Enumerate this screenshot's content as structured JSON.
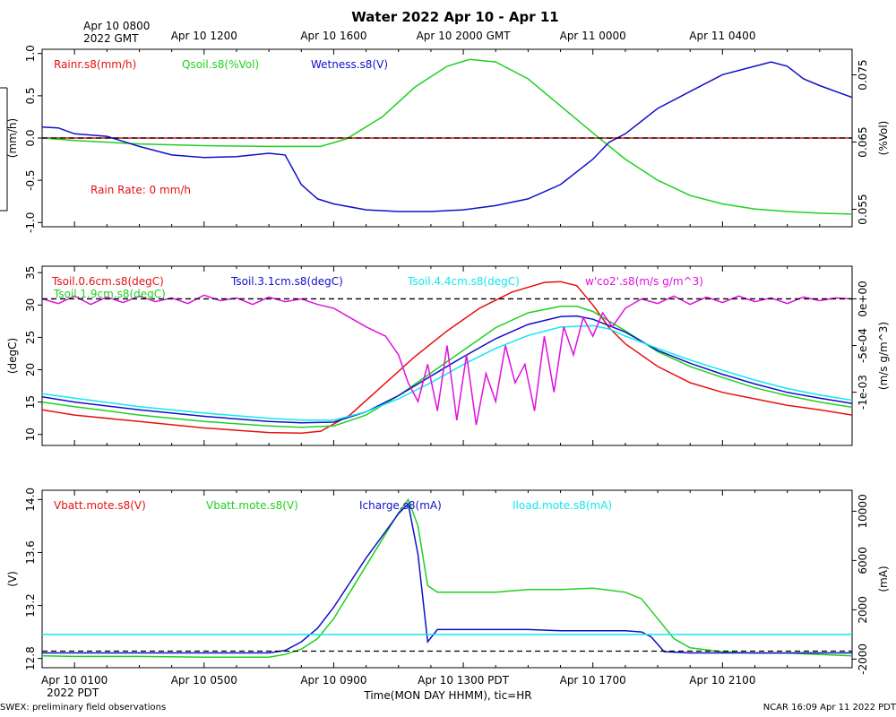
{
  "title": "Water 2022 Apr 10 - Apr 11",
  "top_axis": {
    "labels": [
      {
        "t": 0,
        "lines": [
          "Apr 10 0800",
          "2022 GMT"
        ]
      },
      {
        "t": 4,
        "lines": [
          "Apr 10 1200"
        ]
      },
      {
        "t": 8,
        "lines": [
          "Apr 10 1600"
        ]
      },
      {
        "t": 12,
        "lines": [
          "Apr 10 2000 GMT"
        ]
      },
      {
        "t": 16,
        "lines": [
          "Apr 11 0000"
        ]
      },
      {
        "t": 20,
        "lines": [
          "Apr 11 0400"
        ]
      }
    ]
  },
  "bottom_axis": {
    "labels": [
      {
        "t": 0,
        "lines": [
          "Apr 10 0100",
          "2022 PDT"
        ]
      },
      {
        "t": 4,
        "lines": [
          "Apr 10 0500"
        ]
      },
      {
        "t": 8,
        "lines": [
          "Apr 10 0900"
        ]
      },
      {
        "t": 12,
        "lines": [
          "Apr 10 1300 PDT"
        ]
      },
      {
        "t": 16,
        "lines": [
          "Apr 10 1700"
        ]
      },
      {
        "t": 20,
        "lines": [
          "Apr 10 2100"
        ]
      }
    ],
    "xlabel": "Time(MON DAY HHMM), tic=HR"
  },
  "footer_left": "SWEX: preliminary field observations",
  "footer_right": "NCAR 16:09 Apr 11 2022 PDT",
  "chart_data": [
    {
      "type": "line",
      "panel": "rain-soil-moisture",
      "x_unit": "hours since Apr 10 0100 PDT",
      "xlim": [
        -1,
        24
      ],
      "ylim_left": [
        -1.05,
        1.05
      ],
      "ylim_right": [
        0.0524,
        0.0788
      ],
      "ylabel_left": "(mm/h)",
      "ylabel_right": "(%Vol)",
      "left_ticks": [
        "-1.0",
        "-0.5",
        "0.0",
        "0.5",
        "1.0"
      ],
      "left_tick_values": [
        -1,
        -0.5,
        0,
        0.5,
        1
      ],
      "right_ticks": [
        "0.055",
        "0.065",
        "0.075"
      ],
      "right_tick_values": [
        0.055,
        0.065,
        0.075
      ],
      "annotation": "Rain Rate: 0 mm/h",
      "legend": [
        {
          "label": "Rainr.s8(mm/h)",
          "color": "#e81010"
        },
        {
          "label": "Qsoil.s8(%Vol)",
          "color": "#20d020"
        },
        {
          "label": "Wetness.s8(V)",
          "color": "#1010c8"
        }
      ],
      "series": [
        {
          "name": "Rainr.s8(mm/h)",
          "axis": "left",
          "color": "#e81010",
          "x": [
            -1,
            24
          ],
          "values": [
            0,
            0
          ]
        },
        {
          "name": "Qsoil.s8(%Vol)",
          "axis": "left",
          "color": "#20d020",
          "x": [
            -1,
            0,
            2,
            4,
            6,
            7.6,
            8.4,
            9.5,
            10.5,
            11.5,
            12.2,
            13,
            14,
            15,
            16,
            17,
            18,
            19,
            20,
            21,
            22,
            23,
            24
          ],
          "values": [
            0.0,
            -0.03,
            -0.07,
            -0.09,
            -0.1,
            -0.1,
            -0.01,
            0.25,
            0.6,
            0.85,
            0.93,
            0.9,
            0.7,
            0.38,
            0.06,
            -0.25,
            -0.5,
            -0.68,
            -0.78,
            -0.84,
            -0.87,
            -0.89,
            -0.9
          ]
        },
        {
          "name": "Wetness.s8(V)",
          "axis": "left",
          "color": "#1010c8",
          "x": [
            -1,
            -0.5,
            0,
            1,
            2,
            3,
            4,
            5,
            6,
            6.5,
            7,
            7.5,
            8,
            9,
            10,
            11,
            12,
            13,
            14,
            15,
            16,
            16.5,
            17,
            17.5,
            18,
            19,
            20,
            21,
            21.5,
            22,
            22.5,
            23,
            24
          ],
          "values": [
            0.13,
            0.12,
            0.05,
            0.02,
            -0.1,
            -0.2,
            -0.23,
            -0.22,
            -0.18,
            -0.2,
            -0.55,
            -0.72,
            -0.78,
            -0.85,
            -0.87,
            -0.87,
            -0.85,
            -0.8,
            -0.72,
            -0.55,
            -0.25,
            -0.05,
            0.05,
            0.2,
            0.35,
            0.55,
            0.75,
            0.85,
            0.9,
            0.85,
            0.7,
            0.62,
            0.48
          ]
        }
      ]
    },
    {
      "type": "line",
      "panel": "soil-temperature-flux",
      "x_unit": "hours since Apr 10 0100 PDT",
      "xlim": [
        -1,
        24
      ],
      "ylim_left": [
        8.3,
        36
      ],
      "ylim_right": [
        -0.00157,
        0.00035
      ],
      "ylabel_left": "(degC)",
      "ylabel_right": "(m/s g/m^3)",
      "left_ticks": [
        "10",
        "15",
        "20",
        "25",
        "30",
        "35"
      ],
      "left_tick_values": [
        10,
        15,
        20,
        25,
        30,
        35
      ],
      "right_ticks": [
        "-1e-03",
        "-5e-04",
        "0e+00"
      ],
      "right_tick_values": [
        -0.001,
        -0.0005,
        0
      ],
      "legend": [
        {
          "label": "Tsoil.0.6cm.s8(degC)",
          "color": "#e81010"
        },
        {
          "label": "Tsoil.1.9cm.s8(degC)",
          "color": "#20d020"
        },
        {
          "label": "Tsoil.3.1cm.s8(degC)",
          "color": "#1010c8"
        },
        {
          "label": "Tsoil.4.4cm.s8(degC)",
          "color": "#10e8f0"
        },
        {
          "label": "w'co2'.s8(m/s g/m^3)",
          "color": "#e010e0"
        }
      ],
      "series": [
        {
          "name": "Tsoil.0.6cm.s8(degC)",
          "axis": "left",
          "color": "#e81010",
          "x": [
            -1,
            0,
            2,
            4,
            6,
            7,
            7.6,
            8.5,
            9.5,
            10.5,
            11.5,
            12.5,
            13.5,
            14.5,
            15,
            15.5,
            16,
            16.5,
            17,
            18,
            19,
            20,
            21,
            22,
            23,
            24
          ],
          "values": [
            13.8,
            13.0,
            12.0,
            11.0,
            10.3,
            10.2,
            10.5,
            13.0,
            17.5,
            22.0,
            26.0,
            29.5,
            32.0,
            33.5,
            33.6,
            33.0,
            30.0,
            26.5,
            24.0,
            20.5,
            18.0,
            16.5,
            15.5,
            14.5,
            13.8,
            13.0
          ]
        },
        {
          "name": "Tsoil.1.9cm.s8(degC)",
          "axis": "left",
          "color": "#20d020",
          "x": [
            -1,
            0,
            2,
            4,
            6,
            7,
            8,
            9,
            10,
            11,
            12,
            13,
            14,
            15,
            15.5,
            16,
            17,
            18,
            19,
            20,
            21,
            22,
            23,
            24
          ],
          "values": [
            15.0,
            14.3,
            13.0,
            12.0,
            11.3,
            11.1,
            11.3,
            13.0,
            16.0,
            19.5,
            23.0,
            26.5,
            28.8,
            29.8,
            29.8,
            29.0,
            26.0,
            22.8,
            20.5,
            18.8,
            17.2,
            16.0,
            15.0,
            14.2
          ]
        },
        {
          "name": "Tsoil.3.1cm.s8(degC)",
          "axis": "left",
          "color": "#1010c8",
          "x": [
            -1,
            0,
            2,
            4,
            6,
            7,
            8,
            9,
            10,
            11,
            12,
            13,
            14,
            15,
            15.5,
            16,
            17,
            18,
            19,
            20,
            21,
            22,
            23,
            24
          ],
          "values": [
            15.8,
            15.0,
            13.8,
            12.8,
            12.0,
            11.8,
            11.9,
            13.5,
            16.0,
            19.0,
            22.0,
            24.8,
            27.0,
            28.2,
            28.3,
            27.8,
            25.8,
            23.0,
            21.0,
            19.3,
            17.8,
            16.5,
            15.6,
            14.8
          ]
        },
        {
          "name": "Tsoil.4.4cm.s8(degC)",
          "axis": "left",
          "color": "#10e8f0",
          "x": [
            -1,
            0,
            2,
            4,
            6,
            7,
            8,
            9,
            10,
            11,
            12,
            13,
            14,
            15,
            16,
            16.5,
            17,
            18,
            19,
            20,
            21,
            22,
            23,
            24
          ],
          "values": [
            16.3,
            15.6,
            14.3,
            13.3,
            12.5,
            12.2,
            12.2,
            13.5,
            15.5,
            18.0,
            20.8,
            23.3,
            25.3,
            26.6,
            26.8,
            26.3,
            25.2,
            23.3,
            21.5,
            19.9,
            18.4,
            17.1,
            16.1,
            15.3
          ]
        },
        {
          "name": "w'co2'.s8(m/s g/m^3)",
          "axis": "right",
          "color": "#e010e0",
          "x": [
            -1,
            -0.5,
            0,
            0.5,
            1,
            1.5,
            2,
            2.5,
            3,
            3.5,
            4,
            4.5,
            5,
            5.5,
            6,
            6.5,
            7,
            7.5,
            8,
            8.5,
            9,
            9.3,
            9.6,
            10,
            10.3,
            10.6,
            10.9,
            11.2,
            11.5,
            11.8,
            12.1,
            12.4,
            12.7,
            13,
            13.3,
            13.6,
            13.9,
            14.2,
            14.5,
            14.8,
            15.1,
            15.4,
            15.7,
            16,
            16.3,
            16.6,
            17,
            17.5,
            18,
            18.5,
            19,
            19.5,
            20,
            20.5,
            21,
            21.5,
            22,
            22.5,
            23,
            23.5,
            24
          ],
          "values": [
            0.0,
            -5e-05,
            3e-05,
            -6e-05,
            2e-05,
            -4e-05,
            3e-05,
            -3e-05,
            1e-05,
            -5e-05,
            4e-05,
            -2e-05,
            1e-05,
            -6e-05,
            2e-05,
            -3e-05,
            0.0,
            -6e-05,
            -0.0001,
            -0.0002,
            -0.0003,
            -0.00035,
            -0.0004,
            -0.0006,
            -0.0009,
            -0.0011,
            -0.0007,
            -0.0012,
            -0.0005,
            -0.0013,
            -0.0006,
            -0.00135,
            -0.0008,
            -0.0011,
            -0.0005,
            -0.0009,
            -0.0007,
            -0.0012,
            -0.0004,
            -0.001,
            -0.0003,
            -0.0006,
            -0.0002,
            -0.0004,
            -0.00015,
            -0.0003,
            -0.0001,
            0.0,
            -5e-05,
            3e-05,
            -6e-05,
            2e-05,
            -4e-05,
            3e-05,
            -3e-05,
            1e-05,
            -5e-05,
            2e-05,
            -2e-05,
            1e-05,
            0.0
          ]
        }
      ]
    },
    {
      "type": "line",
      "panel": "battery-power",
      "x_unit": "hours since Apr 10 0100 PDT",
      "xlim": [
        -1,
        24
      ],
      "ylim_left": [
        12.73,
        14.07
      ],
      "ylim_right": [
        -2700,
        11700
      ],
      "ylabel_left": "(V)",
      "ylabel_right": "(mA)",
      "left_ticks": [
        "12.8",
        "13.2",
        "13.6",
        "14.0"
      ],
      "left_tick_values": [
        12.8,
        13.2,
        13.6,
        14.0
      ],
      "right_ticks": [
        "-2000",
        "2000",
        "6000",
        "10000"
      ],
      "right_tick_values": [
        -2000,
        2000,
        6000,
        10000
      ],
      "legend": [
        {
          "label": "Vbatt.mote.s8(V)",
          "color": "#e81010"
        },
        {
          "label": "Vbatt.mote.s8(V)",
          "color": "#20d020"
        },
        {
          "label": "Icharge.s8(mA)",
          "color": "#1010c8"
        },
        {
          "label": "Iload.mote.s8(mA)",
          "color": "#10e8f0"
        }
      ],
      "series": [
        {
          "name": "Vbatt.mote.s8(V)",
          "axis": "left",
          "color": "#20d020",
          "x": [
            -1,
            0,
            2,
            4,
            6,
            6.5,
            7,
            7.5,
            8,
            8.5,
            9,
            9.5,
            10,
            10.3,
            10.6,
            10.9,
            11.2,
            12,
            13,
            14,
            15,
            16,
            17,
            17.5,
            18,
            18.5,
            19,
            20,
            21,
            22,
            23,
            24
          ],
          "values": [
            12.82,
            12.815,
            12.815,
            12.81,
            12.81,
            12.83,
            12.87,
            12.95,
            13.1,
            13.3,
            13.5,
            13.7,
            13.9,
            14.0,
            13.8,
            13.35,
            13.3,
            13.3,
            13.3,
            13.32,
            13.32,
            13.33,
            13.3,
            13.25,
            13.1,
            12.95,
            12.88,
            12.85,
            12.84,
            12.84,
            12.83,
            12.82
          ]
        },
        {
          "name": "Icharge.s8(mA)",
          "axis": "right",
          "color": "#1010c8",
          "x": [
            -1,
            0,
            2,
            4,
            6,
            6.5,
            7,
            7.5,
            8,
            8.5,
            9,
            9.5,
            10,
            10.3,
            10.6,
            10.9,
            11.2,
            12,
            13,
            14,
            15,
            16,
            17,
            17.5,
            17.8,
            18.2,
            19,
            20,
            21,
            22,
            23,
            24
          ],
          "values": [
            -1500,
            -1500,
            -1500,
            -1500,
            -1500,
            -1300,
            -600,
            500,
            2200,
            4200,
            6200,
            8000,
            9800,
            10600,
            6500,
            -600,
            400,
            400,
            400,
            400,
            300,
            300,
            300,
            200,
            -200,
            -1400,
            -1500,
            -1500,
            -1500,
            -1500,
            -1500,
            -1500
          ]
        },
        {
          "name": "Iload.mote.s8(mA)",
          "axis": "right",
          "color": "#10e8f0",
          "x": [
            -1,
            24
          ],
          "values": [
            0,
            0
          ]
        },
        {
          "name": "zero-reference",
          "axis": "left",
          "color": "#000000",
          "dashed": true,
          "x": [
            -1,
            24
          ],
          "values": [
            12.855,
            12.855
          ]
        }
      ]
    }
  ]
}
